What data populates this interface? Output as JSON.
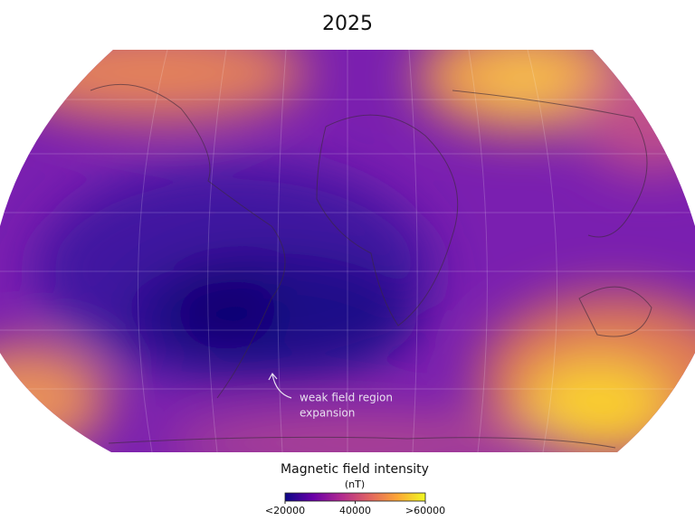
{
  "title": "2025",
  "annotation": [
    "weak field region",
    "expansion"
  ],
  "colorbar": {
    "title": "Magnetic field intensity",
    "unit": "(nT)",
    "lim": [
      20000,
      60000
    ],
    "ticks": [
      {
        "value": 20000,
        "label": "<20000"
      },
      40000,
      {
        "value": 60000,
        "label": ">60000"
      }
    ],
    "colors": [
      "#0d0887",
      "#6a00a8",
      "#b12a90",
      "#e16462",
      "#fca636",
      "#f0f921"
    ]
  }
}
